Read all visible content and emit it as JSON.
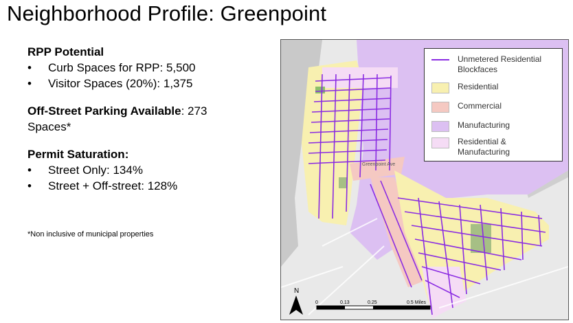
{
  "title": "Neighborhood Profile: Greenpoint",
  "rpp": {
    "heading": "RPP Potential",
    "items": [
      "Curb Spaces for RPP: 5,500",
      "Visitor Spaces (20%): 1,375"
    ]
  },
  "offstreet": {
    "label": "Off-Street Parking Available",
    "value": ": 273",
    "line2": "Spaces*"
  },
  "permit": {
    "heading": "Permit Saturation:",
    "items": [
      "Street Only: 134%",
      "Street + Off-street: 128%"
    ]
  },
  "footnote": "*Non inclusive of municipal properties",
  "map": {
    "legend": {
      "unmetered_1": "Unmetered Residential",
      "unmetered_2": "Blockfaces",
      "residential": "Residential",
      "commercial": "Commercial",
      "manufacturing": "Manufacturing",
      "resman_1": "Residential &",
      "resman_2": "Manufacturing"
    },
    "colors": {
      "residential": "#f8f0b0",
      "commercial": "#f5c9c2",
      "manufacturing": "#dcc0f2",
      "resman": "#f5dcf5",
      "blockface": "#8a2be2"
    },
    "scale": {
      "t0": "0",
      "t1": "0.13",
      "t2": "0.25",
      "t3": "0.5 Miles"
    },
    "north": "N",
    "street_label": "Greenpoint Ave"
  }
}
